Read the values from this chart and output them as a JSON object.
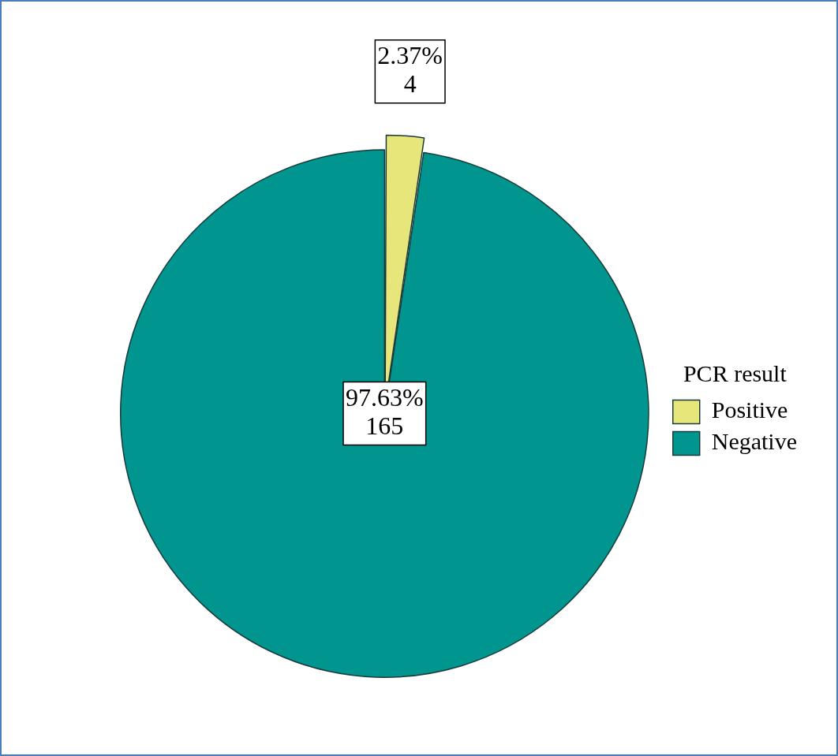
{
  "chart_data": {
    "type": "pie",
    "legend_title": "PCR result",
    "legend": "right",
    "categories": [
      "Positive",
      "Negative"
    ],
    "values": [
      4,
      165
    ],
    "colors": [
      "#e6e67a",
      "#00958f"
    ],
    "value_labels": [
      "2.37%\n4",
      "97.63%\n165"
    ]
  }
}
